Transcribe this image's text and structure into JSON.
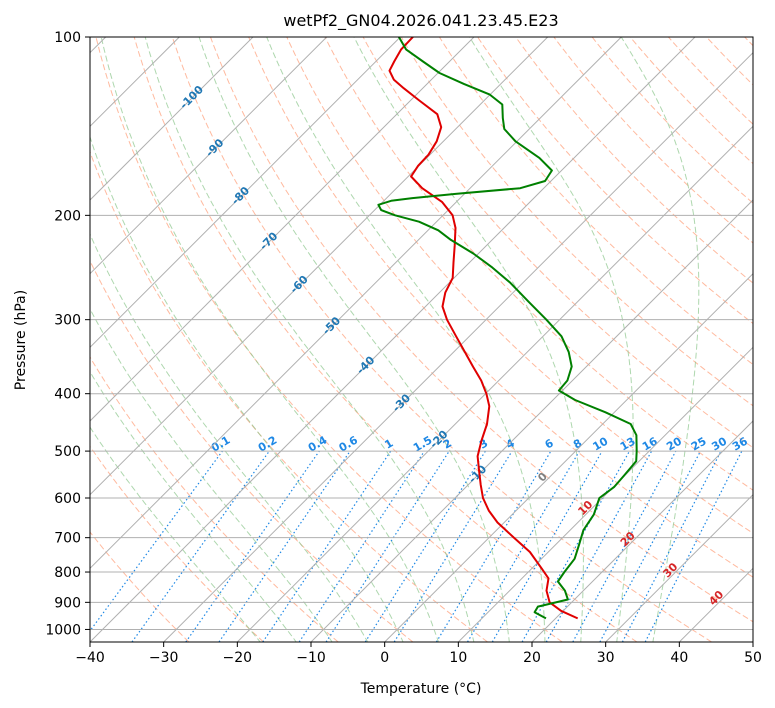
{
  "chart_data": {
    "type": "line",
    "title": "wetPf2_GN04.2026.041.23.45.E23",
    "xlabel": "Temperature (°C)",
    "ylabel": "Pressure (hPa)",
    "xlim": [
      -40,
      50
    ],
    "ylim": [
      1050,
      100
    ],
    "y_scale": "log",
    "skew": true,
    "grid": true,
    "x_ticks": [
      -40,
      -30,
      -20,
      -10,
      0,
      10,
      20,
      30,
      40,
      50
    ],
    "y_ticks": [
      100,
      200,
      300,
      400,
      500,
      600,
      700,
      800,
      900,
      1000
    ],
    "series": [
      {
        "role": "temperature",
        "color": "#e00000",
        "points": [
          [
            958,
            23.0
          ],
          [
            930,
            19.7
          ],
          [
            900,
            17.0
          ],
          [
            860,
            15.0
          ],
          [
            820,
            13.6
          ],
          [
            790,
            11.4
          ],
          [
            740,
            7.5
          ],
          [
            700,
            3.4
          ],
          [
            660,
            -0.9
          ],
          [
            630,
            -3.7
          ],
          [
            600,
            -6.2
          ],
          [
            570,
            -8.3
          ],
          [
            540,
            -10.4
          ],
          [
            510,
            -12.6
          ],
          [
            480,
            -14.2
          ],
          [
            450,
            -15.7
          ],
          [
            420,
            -17.8
          ],
          [
            400,
            -19.9
          ],
          [
            380,
            -22.4
          ],
          [
            360,
            -25.4
          ],
          [
            340,
            -28.5
          ],
          [
            320,
            -31.8
          ],
          [
            300,
            -35.3
          ],
          [
            285,
            -37.7
          ],
          [
            270,
            -39.2
          ],
          [
            255,
            -40.2
          ],
          [
            240,
            -42.2
          ],
          [
            225,
            -44.3
          ],
          [
            210,
            -46.6
          ],
          [
            200,
            -48.7
          ],
          [
            190,
            -51.9
          ],
          [
            180,
            -56.5
          ],
          [
            172,
            -59.6
          ],
          [
            165,
            -60.1
          ],
          [
            158,
            -60.2
          ],
          [
            150,
            -60.9
          ],
          [
            142,
            -62.2
          ],
          [
            135,
            -64.5
          ],
          [
            128,
            -68.8
          ],
          [
            122,
            -72.6
          ],
          [
            118,
            -75.1
          ],
          [
            114,
            -76.9
          ],
          [
            110,
            -77.5
          ],
          [
            105,
            -78.2
          ],
          [
            100,
            -78.3
          ]
        ]
      },
      {
        "role": "dewpoint",
        "color": "#008000",
        "points": [
          [
            958,
            18.7
          ],
          [
            935,
            16.3
          ],
          [
            915,
            16.0
          ],
          [
            890,
            19.1
          ],
          [
            860,
            17.5
          ],
          [
            830,
            15.3
          ],
          [
            800,
            14.9
          ],
          [
            760,
            14.5
          ],
          [
            720,
            13.2
          ],
          [
            680,
            11.8
          ],
          [
            640,
            11.1
          ],
          [
            600,
            9.6
          ],
          [
            575,
            10.1
          ],
          [
            550,
            9.9
          ],
          [
            520,
            9.6
          ],
          [
            500,
            8.3
          ],
          [
            470,
            6.1
          ],
          [
            450,
            3.8
          ],
          [
            430,
            -1.2
          ],
          [
            410,
            -7.0
          ],
          [
            395,
            -10.5
          ],
          [
            380,
            -10.7
          ],
          [
            360,
            -12.0
          ],
          [
            340,
            -14.4
          ],
          [
            320,
            -17.5
          ],
          [
            300,
            -21.8
          ],
          [
            280,
            -26.6
          ],
          [
            260,
            -31.7
          ],
          [
            245,
            -36.2
          ],
          [
            232,
            -40.7
          ],
          [
            220,
            -45.6
          ],
          [
            212,
            -48.6
          ],
          [
            205,
            -52.4
          ],
          [
            200,
            -56.5
          ],
          [
            196,
            -59.1
          ],
          [
            192,
            -60.2
          ],
          [
            189,
            -59.0
          ],
          [
            187,
            -56.5
          ],
          [
            184,
            -51.2
          ],
          [
            180,
            -43.2
          ],
          [
            175,
            -40.8
          ],
          [
            168,
            -41.3
          ],
          [
            160,
            -44.7
          ],
          [
            150,
            -50.2
          ],
          [
            143,
            -53.4
          ],
          [
            137,
            -55.1
          ],
          [
            130,
            -57.0
          ],
          [
            125,
            -60.1
          ],
          [
            120,
            -65.0
          ],
          [
            115,
            -69.8
          ],
          [
            110,
            -73.6
          ],
          [
            105,
            -77.5
          ],
          [
            100,
            -80.2
          ]
        ]
      }
    ],
    "dry_adiabats_theta_c": [
      -30,
      -20,
      -10,
      0,
      10,
      20,
      30,
      40,
      50,
      60,
      70,
      80,
      90,
      100,
      110,
      120,
      130,
      140,
      150,
      160,
      170,
      180,
      190,
      200
    ],
    "moist_adiabats_start_c": [
      -20,
      -15,
      -10,
      -5,
      0,
      5,
      10,
      15,
      20,
      25,
      30,
      35
    ],
    "isohume_values": [
      "0.1",
      "0.2",
      "0.4",
      "0.6",
      "1",
      "1.5",
      "2",
      "3",
      "4",
      "6",
      "8",
      "10",
      "13",
      "16",
      "20",
      "25",
      "30",
      "36"
    ],
    "upper_isotherm_labels": [
      "-100",
      "-90",
      "-80",
      "-70",
      "-60",
      "-50",
      "-40",
      "-30",
      "-20",
      "-10"
    ],
    "lower_isotherm_labels": [
      "0",
      "10",
      "20",
      "30",
      "40"
    ],
    "colors": {
      "grid": "#b0b0b0",
      "dry_adiabat": "#ffa37f",
      "moist_adiabat": "#8cc68c",
      "isohume": "#1e88e5",
      "isotherm_label_upper": "#1f77b4",
      "isotherm_label_lower": "#d62728",
      "isotherm_label_zero": "#808080"
    }
  }
}
